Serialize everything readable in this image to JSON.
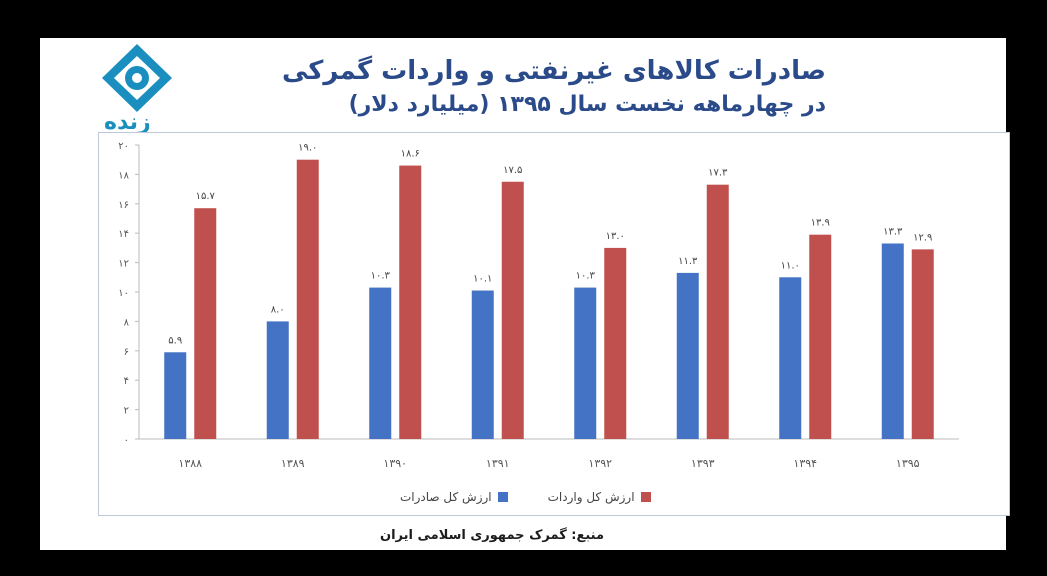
{
  "header": {
    "logo_text": "زنده",
    "title_line1": "صادرات کالاهای غیرنفتی و واردات گمرکی",
    "title_line2": "در چهارماهه نخست سال ۱۳۹۵ (میلیارد دلار)"
  },
  "source": "منبع: گمرک جمهوری اسلامی ایران",
  "colors": {
    "exports": "#4472c4",
    "imports": "#c0504d"
  },
  "chart_data": {
    "type": "bar",
    "title": "صادرات کالاهای غیرنفتی و واردات گمرکی در چهارماهه نخست سال ۱۳۹۵ (میلیارد دلار)",
    "categories": [
      "۱۳۸۸",
      "۱۳۸۹",
      "۱۳۹۰",
      "۱۳۹۱",
      "۱۳۹۲",
      "۱۳۹۳",
      "۱۳۹۴",
      "۱۳۹۵"
    ],
    "series": [
      {
        "name": "ارزش کل صادرات",
        "values": [
          5.9,
          8.0,
          10.3,
          10.1,
          10.3,
          11.3,
          11.0,
          13.3
        ],
        "labels": [
          "۵.۹",
          "۸.۰",
          "۱۰.۳",
          "۱۰.۱",
          "۱۰.۳",
          "۱۱.۳",
          "۱۱.۰",
          "۱۳.۳"
        ]
      },
      {
        "name": "ارزش کل واردات",
        "values": [
          15.7,
          19.0,
          18.6,
          17.5,
          13.0,
          17.3,
          13.9,
          12.9
        ],
        "labels": [
          "۱۵.۷",
          "۱۹.۰",
          "۱۸.۶",
          "۱۷.۵",
          "۱۳.۰",
          "۱۷.۳",
          "۱۳.۹",
          "۱۲.۹"
        ]
      }
    ],
    "ylim": [
      0,
      20
    ],
    "yticks": [
      0,
      2,
      4,
      6,
      8,
      10,
      12,
      14,
      16,
      18,
      20
    ],
    "ytick_labels": [
      "۰",
      "۲",
      "۴",
      "۶",
      "۸",
      "۱۰",
      "۱۲",
      "۱۴",
      "۱۶",
      "۱۸",
      "۲۰"
    ],
    "grid": false,
    "legend_position": "bottom"
  }
}
